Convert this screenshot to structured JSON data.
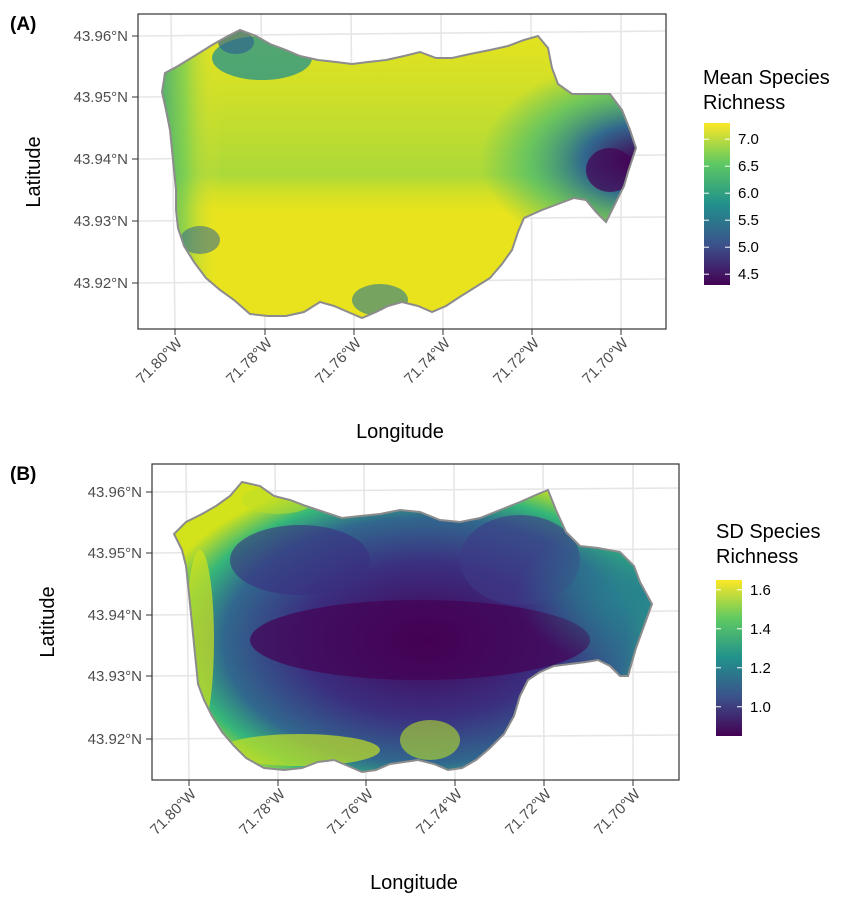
{
  "chart_data": [
    {
      "type": "heatmap",
      "panel_tag": "(A)",
      "xlabel": "Longitude",
      "ylabel": "Latitude",
      "x_ticks": [
        "71.80°W",
        "71.78°W",
        "71.76°W",
        "71.74°W",
        "71.72°W",
        "71.70°W"
      ],
      "y_ticks": [
        "43.96°N",
        "43.95°N",
        "43.94°N",
        "43.93°N",
        "43.92°N"
      ],
      "xlim": [
        -71.802,
        -71.69
      ],
      "ylim": [
        43.913,
        43.962
      ],
      "legend_title_lines": [
        "Mean Species",
        "Richness"
      ],
      "legend_ticks": [
        "7.0",
        "6.5",
        "6.0",
        "5.5",
        "5.0",
        "4.5"
      ],
      "legend_range": [
        4.3,
        7.3
      ],
      "grid": true,
      "legend_position": "right",
      "colormap": "viridis"
    },
    {
      "type": "heatmap",
      "panel_tag": "(B)",
      "xlabel": "Longitude",
      "ylabel": "Latitude",
      "x_ticks": [
        "71.80°W",
        "71.78°W",
        "71.76°W",
        "71.74°W",
        "71.72°W",
        "71.70°W"
      ],
      "y_ticks": [
        "43.96°N",
        "43.95°N",
        "43.94°N",
        "43.93°N",
        "43.92°N"
      ],
      "xlim": [
        -71.802,
        -71.69
      ],
      "ylim": [
        43.913,
        43.962
      ],
      "legend_title_lines": [
        "SD Species",
        "Richness"
      ],
      "legend_ticks": [
        "1.6",
        "1.4",
        "1.2",
        "1.0"
      ],
      "legend_range": [
        0.85,
        1.65
      ],
      "grid": true,
      "legend_position": "right",
      "colormap": "viridis"
    }
  ],
  "colors": {
    "boundary": "#8c8c8c",
    "panel_border": "#333333",
    "grid": "#e6e6e6",
    "viridis": [
      "#440154",
      "#3b528b",
      "#21918c",
      "#5ec962",
      "#fde725"
    ]
  }
}
